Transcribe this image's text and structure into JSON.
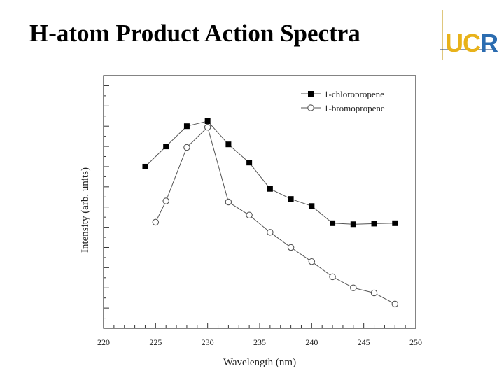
{
  "title": "H-atom Product Action Spectra",
  "logo": {
    "u": "U",
    "c": "C",
    "r": "R"
  },
  "colors": {
    "axis": "#333333",
    "marker": "#000000",
    "line": "#555555"
  },
  "chart_data": {
    "type": "line",
    "xlabel": "Wavelength (nm)",
    "ylabel": "Intensity (arb. units)",
    "xlim": [
      220,
      250
    ],
    "xticks": [
      220,
      225,
      230,
      235,
      240,
      245,
      250
    ],
    "ylim": [
      0,
      12.5
    ],
    "yticks_labeled": false,
    "legend_position": "top-right",
    "series": [
      {
        "name": "1-chloropropene",
        "marker": "filled-square",
        "x": [
          224,
          226,
          228,
          230,
          232,
          234,
          236,
          238,
          240,
          242,
          244,
          246,
          248
        ],
        "y": [
          8.0,
          9.0,
          10.0,
          10.25,
          9.1,
          8.2,
          6.9,
          6.4,
          6.05,
          5.2,
          5.15,
          5.18,
          5.2
        ]
      },
      {
        "name": "1-bromopropene",
        "marker": "open-circle",
        "x": [
          225,
          226,
          228,
          230,
          232,
          234,
          236,
          238,
          240,
          242,
          244,
          246,
          248
        ],
        "y": [
          5.25,
          6.3,
          8.95,
          9.95,
          6.25,
          5.6,
          4.75,
          4.0,
          3.3,
          2.55,
          2.0,
          1.75,
          1.2
        ]
      }
    ]
  }
}
